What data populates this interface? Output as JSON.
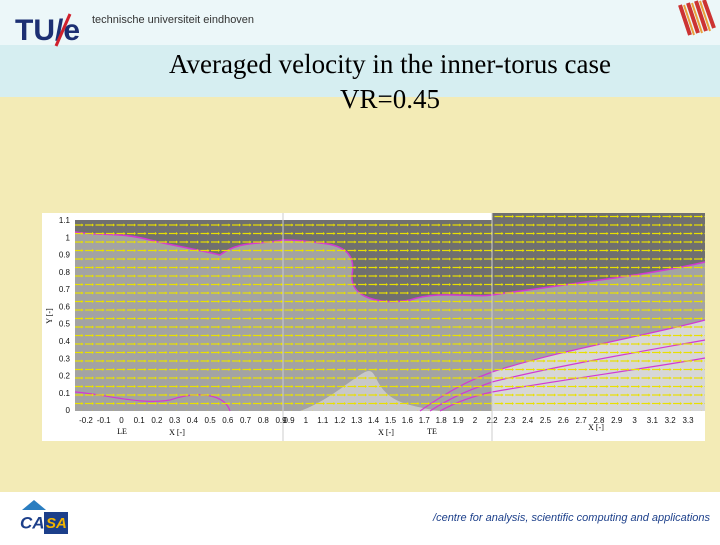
{
  "header": {
    "logo": "TU/e",
    "university": "technische universiteit eindhoven"
  },
  "title": [
    "Averaged velocity in the inner-torus case",
    "VR=0.45"
  ],
  "panels": [
    {
      "y_label": "Y [-]",
      "yticks": [
        "1.1",
        "1",
        "0.9",
        "0.8",
        "0.7",
        "0.6",
        "0.5",
        "0.4",
        "0.3",
        "0.2",
        "0.1",
        "0"
      ],
      "xticks": [
        "-0.2",
        "-0.1",
        "0",
        "0.1",
        "0.2",
        "0.3",
        "0.4",
        "0.5",
        "0.6",
        "0.7",
        "0.8",
        "0.9"
      ],
      "x_label": "X [-]",
      "marker": "LE"
    },
    {
      "xticks": [
        "0.9",
        "1",
        "1.1",
        "1.2",
        "1.3",
        "1.4",
        "1.5",
        "1.6",
        "1.7",
        "1.8",
        "1.9",
        "2"
      ],
      "x_label": "X [-]",
      "marker": "TE"
    },
    {
      "xticks": [
        "2.2",
        "2.3",
        "2.4",
        "2.5",
        "2.6",
        "2.7",
        "2.8",
        "2.9",
        "3",
        "3.1",
        "3.2",
        "3.3"
      ],
      "x_label": "X [-]"
    }
  ],
  "footer": {
    "logo_left": "CA",
    "logo_right": "SA",
    "text": "/centre for analysis, scientific computing and applications"
  }
}
